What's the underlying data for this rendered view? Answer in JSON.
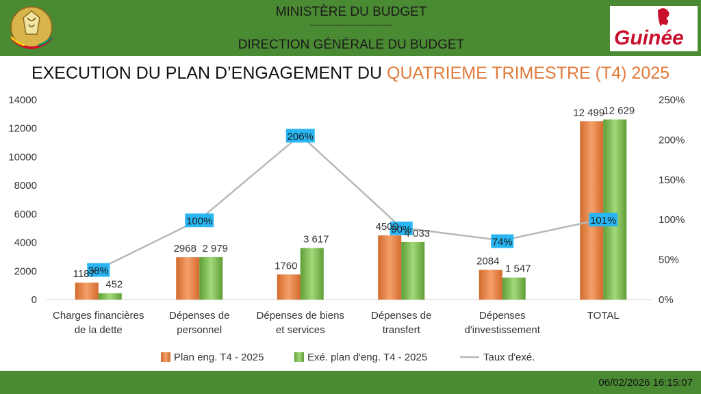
{
  "header": {
    "line1": "MINISTÈRE DU BUDGET",
    "separator": "---------------------------------",
    "line2": "DIRECTION GÉNÉRALE DU BUDGET",
    "logo_text": "Guinée"
  },
  "title": {
    "part1": "EXECUTION DU PLAN D’ENGAGEMENT DU ",
    "part2": "QUATRIEME TRIMESTRE (T4) 2025"
  },
  "footer": {
    "timestamp": "06/02/2026 16:15:07"
  },
  "colors": {
    "header_green": "#4a8a32",
    "plan_orange": "#e0793a",
    "exe_green": "#79b84a",
    "line_gray": "#b8b8b8",
    "rate_label_bg": "#29b6f2",
    "accent": "#e0793a"
  },
  "chart_data": {
    "type": "bar",
    "categories": [
      [
        "Charges financières",
        "de la dette"
      ],
      [
        "Dépenses de",
        "personnel"
      ],
      [
        "Dépenses de biens",
        "et services"
      ],
      [
        "Dépenses de",
        "transfert"
      ],
      [
        "Dépenses",
        "d'investissement"
      ],
      [
        "TOTAL"
      ]
    ],
    "series": [
      {
        "name": "Plan eng. T4 - 2025",
        "type": "bar",
        "axis": "left",
        "values": [
          1187,
          2968,
          1760,
          4500,
          2084,
          12499
        ],
        "labels": [
          "1187",
          "2968",
          "1760",
          "4500",
          "2084",
          "12 499"
        ]
      },
      {
        "name": "Exé. plan d'eng. T4 - 2025",
        "type": "bar",
        "axis": "left",
        "values": [
          452,
          2979,
          3617,
          4033,
          1547,
          12629
        ],
        "labels": [
          "452",
          "2 979",
          "3 617",
          "4 033",
          "1 547",
          "12 629"
        ]
      },
      {
        "name": "Taux d'exé.",
        "type": "line",
        "axis": "right",
        "values": [
          38,
          100,
          206,
          90,
          74,
          101
        ],
        "labels": [
          "38%",
          "100%",
          "206%",
          "90%",
          "74%",
          "101%"
        ]
      }
    ],
    "ylim": [
      0,
      14000
    ],
    "yticks": [
      "0",
      "2000",
      "4000",
      "6000",
      "8000",
      "10000",
      "12000",
      "14000"
    ],
    "y2lim": [
      0,
      250
    ],
    "y2ticks": [
      "0%",
      "50%",
      "100%",
      "150%",
      "200%",
      "250%"
    ],
    "legend": "bottom",
    "grid": false
  }
}
